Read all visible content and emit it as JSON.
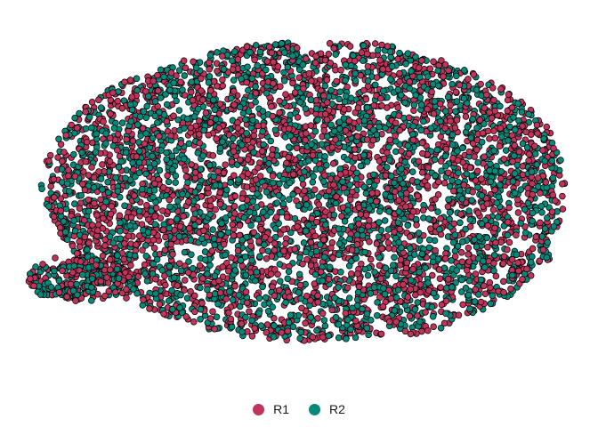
{
  "chart_data": {
    "type": "scatter",
    "title": "",
    "xlabel": "",
    "ylabel": "",
    "axes_visible": false,
    "grid": false,
    "legend_position": "bottom",
    "point_outline_color": "#000000",
    "series": [
      {
        "name": "R1",
        "color": "#c0335a"
      },
      {
        "name": "R2",
        "color": "#05897a"
      }
    ]
  }
}
